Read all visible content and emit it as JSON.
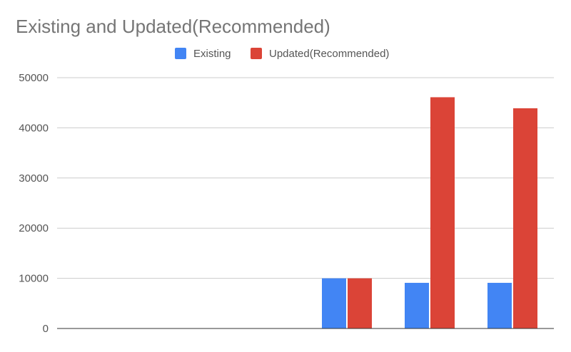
{
  "chart_data": {
    "type": "bar",
    "title": "Existing and Updated(Recommended)",
    "xlabel": "",
    "ylabel": "",
    "categories": [
      "",
      "",
      "",
      "",
      "",
      ""
    ],
    "series": [
      {
        "name": "Existing",
        "color": "#4285f4",
        "values": [
          0,
          0,
          0,
          10000,
          9100,
          9100
        ]
      },
      {
        "name": "Updated(Recommended)",
        "color": "#db4437",
        "values": [
          0,
          0,
          0,
          10000,
          46100,
          43900
        ]
      }
    ],
    "ylim": [
      0,
      50000
    ],
    "yticks": [
      "0",
      "10000",
      "20000",
      "30000",
      "40000",
      "50000"
    ],
    "grid": true,
    "legend_position": "top-center"
  }
}
